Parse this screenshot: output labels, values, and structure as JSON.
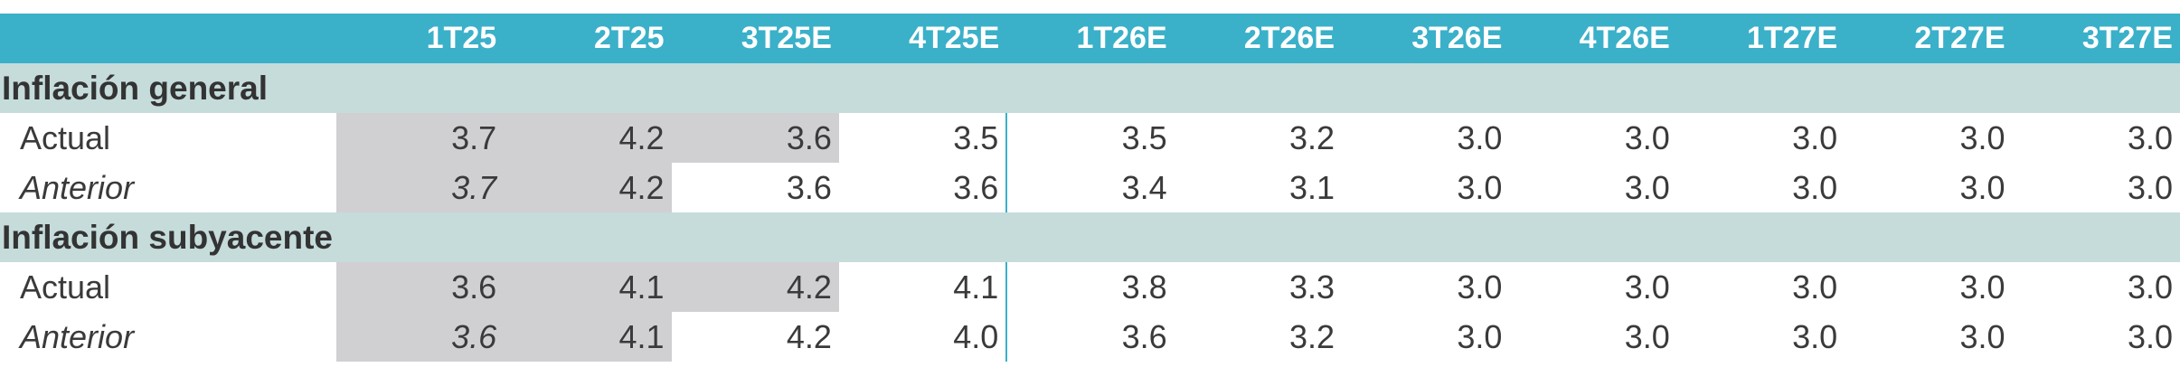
{
  "header": {
    "columns": [
      "1T25",
      "2T25",
      "3T25E",
      "4T25E",
      "1T26E",
      "2T26E",
      "3T26E",
      "4T26E",
      "1T27E",
      "2T27E",
      "3T27E"
    ]
  },
  "sections": [
    {
      "title": "Inflación general",
      "rows": [
        {
          "label": "Actual",
          "values": [
            "3.7",
            "4.2",
            "3.6",
            "3.5",
            "3.5",
            "3.2",
            "3.0",
            "3.0",
            "3.0",
            "3.0",
            "3.0"
          ]
        },
        {
          "label": "Anterior",
          "values": [
            "3.7",
            "4.2",
            "3.6",
            "3.6",
            "3.4",
            "3.1",
            "3.0",
            "3.0",
            "3.0",
            "3.0",
            "3.0"
          ]
        }
      ]
    },
    {
      "title": "Inflación subyacente",
      "rows": [
        {
          "label": "Actual",
          "values": [
            "3.6",
            "4.1",
            "4.2",
            "4.1",
            "3.8",
            "3.3",
            "3.0",
            "3.0",
            "3.0",
            "3.0",
            "3.0"
          ]
        },
        {
          "label": "Anterior",
          "values": [
            "3.6",
            "4.1",
            "4.2",
            "4.0",
            "3.6",
            "3.2",
            "3.0",
            "3.0",
            "3.0",
            "3.0",
            "3.0"
          ]
        }
      ]
    }
  ]
}
